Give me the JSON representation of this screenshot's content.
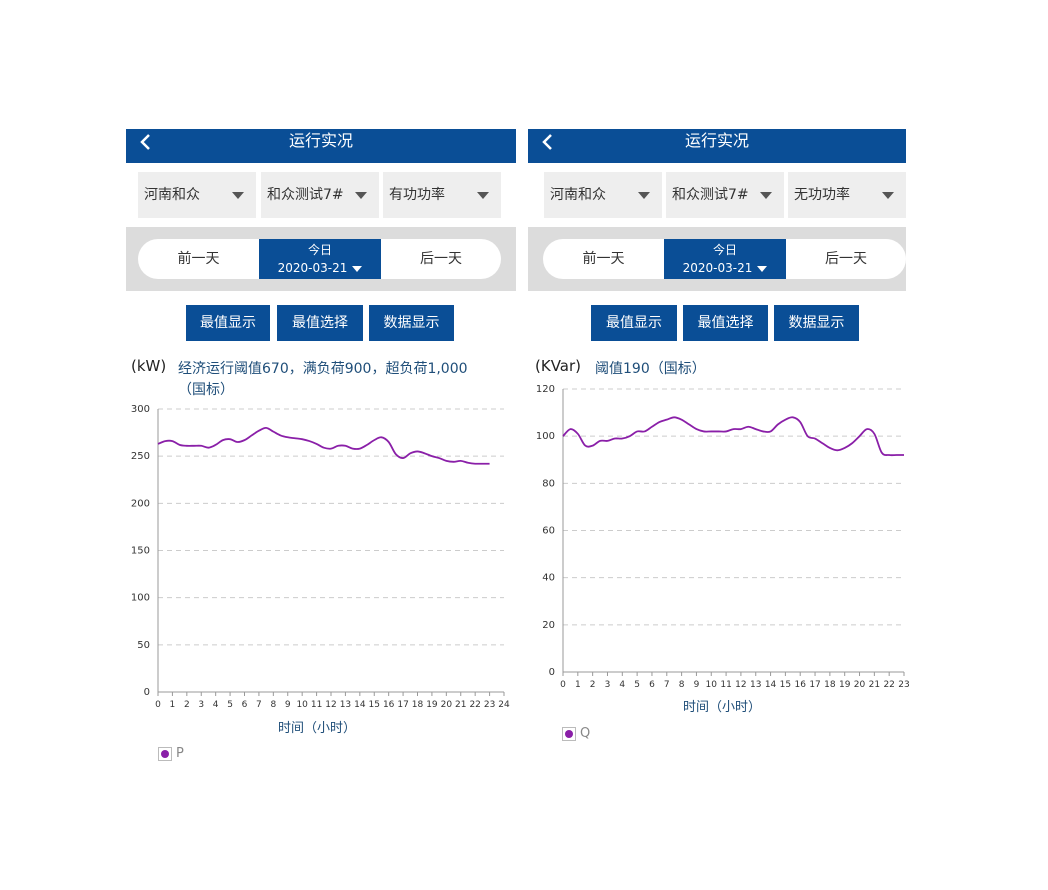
{
  "colors": {
    "header": "#0a4e96",
    "line": "#8a1fa8",
    "bg": "#dcdcdc"
  },
  "panels": [
    {
      "title": "运行实况",
      "selects": [
        "河南和众",
        "和众测试7#",
        "有功功率"
      ],
      "date": {
        "prev": "前一天",
        "today_label": "今日",
        "today_date": "2020-03-21",
        "next": "后一天"
      },
      "buttons": [
        "最值显示",
        "最值选择",
        "数据显示"
      ],
      "unit": "(kW)",
      "note": "经济运行阈值670，满负荷900，超负荷1,000（国标）",
      "xlabel": "时间（小时）",
      "legend": "P"
    },
    {
      "title": "运行实况",
      "selects": [
        "河南和众",
        "和众测试7#",
        "无功功率"
      ],
      "date": {
        "prev": "前一天",
        "today_label": "今日",
        "today_date": "2020-03-21",
        "next": "后一天"
      },
      "buttons": [
        "最值显示",
        "最值选择",
        "数据显示"
      ],
      "unit": "(KVar)",
      "note": "阈值190（国标）",
      "xlabel": "时间（小时）",
      "legend": "Q"
    }
  ],
  "chart_data": [
    {
      "type": "line",
      "title": "",
      "xlabel": "时间（小时）",
      "ylabel": "(kW)",
      "ylim": [
        0,
        300
      ],
      "yticks": [
        0,
        50,
        100,
        150,
        200,
        250,
        300
      ],
      "xlim": [
        0,
        24
      ],
      "xticks": [
        0,
        1,
        2,
        3,
        4,
        5,
        6,
        7,
        8,
        9,
        10,
        11,
        12,
        13,
        14,
        15,
        16,
        17,
        18,
        19,
        20,
        21,
        22,
        23,
        24
      ],
      "grid": true,
      "legend_position": "bottom-left",
      "series": [
        {
          "name": "P",
          "x": [
            0,
            0.5,
            1,
            1.5,
            2,
            2.5,
            3,
            3.5,
            4,
            4.5,
            5,
            5.5,
            6,
            6.5,
            7,
            7.5,
            8,
            8.5,
            9,
            9.5,
            10,
            10.5,
            11,
            11.5,
            12,
            12.5,
            13,
            13.5,
            14,
            14.5,
            15,
            15.5,
            16,
            16.5,
            17,
            17.5,
            18,
            18.5,
            19,
            19.5,
            20,
            20.5,
            21,
            21.5,
            22,
            22.5,
            23
          ],
          "values": [
            263,
            266,
            266,
            262,
            261,
            261,
            261,
            259,
            262,
            267,
            268,
            265,
            267,
            272,
            277,
            280,
            276,
            272,
            270,
            269,
            268,
            266,
            263,
            259,
            258,
            261,
            261,
            258,
            258,
            262,
            267,
            270,
            265,
            252,
            248,
            253,
            255,
            253,
            250,
            248,
            245,
            244,
            245,
            243,
            242,
            242,
            242
          ]
        }
      ]
    },
    {
      "type": "line",
      "title": "",
      "xlabel": "时间（小时）",
      "ylabel": "(KVar)",
      "ylim": [
        0,
        120
      ],
      "yticks": [
        0,
        20,
        40,
        60,
        80,
        100,
        120
      ],
      "xlim": [
        0,
        23
      ],
      "xticks": [
        0,
        1,
        2,
        3,
        4,
        5,
        6,
        7,
        8,
        9,
        10,
        11,
        12,
        13,
        14,
        15,
        16,
        17,
        18,
        19,
        20,
        21,
        22,
        23
      ],
      "grid": true,
      "legend_position": "bottom-left",
      "series": [
        {
          "name": "Q",
          "x": [
            0,
            0.5,
            1,
            1.5,
            2,
            2.5,
            3,
            3.5,
            4,
            4.5,
            5,
            5.5,
            6,
            6.5,
            7,
            7.5,
            8,
            8.5,
            9,
            9.5,
            10,
            10.5,
            11,
            11.5,
            12,
            12.5,
            13,
            13.5,
            14,
            14.5,
            15,
            15.5,
            16,
            16.5,
            17,
            17.5,
            18,
            18.5,
            19,
            19.5,
            20,
            20.5,
            21,
            21.5,
            22,
            22.5,
            23
          ],
          "values": [
            100,
            103,
            101,
            96,
            96,
            98,
            98,
            99,
            99,
            100,
            102,
            102,
            104,
            106,
            107,
            108,
            107,
            105,
            103,
            102,
            102,
            102,
            102,
            103,
            103,
            104,
            103,
            102,
            102,
            105,
            107,
            108,
            106,
            100,
            99,
            97,
            95,
            94,
            95,
            97,
            100,
            103,
            101,
            93,
            92,
            92,
            92
          ]
        }
      ]
    }
  ]
}
